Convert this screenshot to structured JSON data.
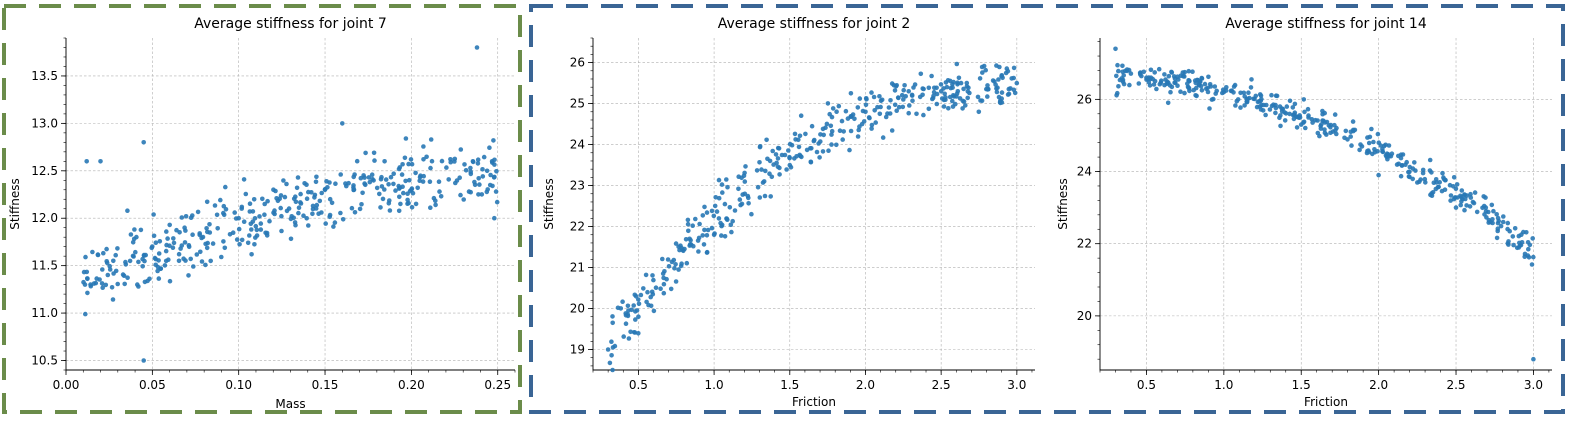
{
  "colors": {
    "points": "#2878b5",
    "group_green": "#6b8c4a",
    "group_blue": "#3a6595"
  },
  "chart_data": [
    {
      "type": "scatter",
      "title": "Average stiffness for joint 7",
      "xlabel": "Mass",
      "ylabel": "Stiffness",
      "xlim": [
        0.0,
        0.26
      ],
      "ylim": [
        10.4,
        13.9
      ],
      "xticks": [
        0.0,
        0.05,
        0.1,
        0.15,
        0.2,
        0.25
      ],
      "xtick_labels": [
        "0.00",
        "0.05",
        "0.10",
        "0.15",
        "0.20",
        "0.25"
      ],
      "yticks": [
        10.5,
        11.0,
        11.5,
        12.0,
        12.5,
        13.0,
        13.5
      ],
      "ytick_labels": [
        "10.5",
        "11.0",
        "11.5",
        "12.0",
        "12.5",
        "13.0",
        "13.5"
      ],
      "trend": {
        "kind": "linear_sat",
        "x0": 0.01,
        "x1": 0.25,
        "y0": 11.35,
        "y1": 12.5,
        "noise": 0.3
      },
      "n_points": 400,
      "x_range": [
        0.01,
        0.25
      ],
      "points_sample": [
        [
          0.011,
          11.3
        ],
        [
          0.012,
          12.6
        ],
        [
          0.02,
          12.6
        ],
        [
          0.045,
          10.5
        ],
        [
          0.045,
          12.8
        ],
        [
          0.1,
          12.0
        ],
        [
          0.15,
          12.3
        ],
        [
          0.16,
          13.0
        ],
        [
          0.2,
          12.3
        ],
        [
          0.238,
          13.8
        ],
        [
          0.248,
          12.0
        ]
      ]
    },
    {
      "type": "scatter",
      "title": "Average stiffness for joint 2",
      "xlabel": "Friction",
      "ylabel": "Stiffness",
      "xlim": [
        0.2,
        3.12
      ],
      "ylim": [
        18.5,
        26.6
      ],
      "xticks": [
        0.5,
        1.0,
        1.5,
        2.0,
        2.5,
        3.0
      ],
      "xtick_labels": [
        "0.5",
        "1.0",
        "1.5",
        "2.0",
        "2.5",
        "3.0"
      ],
      "yticks": [
        19,
        20,
        21,
        22,
        23,
        24,
        25,
        26
      ],
      "ytick_labels": [
        "19",
        "20",
        "21",
        "22",
        "23",
        "24",
        "25",
        "26"
      ],
      "trend": {
        "kind": "concave",
        "x0": 0.3,
        "x1": 3.0,
        "y0": 19.0,
        "y1": 25.4,
        "noise": 0.55
      },
      "n_points": 400,
      "x_range": [
        0.3,
        3.0
      ],
      "points_sample": [
        [
          0.3,
          19.0
        ],
        [
          0.5,
          19.8
        ],
        [
          1.0,
          21.8
        ],
        [
          1.5,
          23.5
        ],
        [
          2.0,
          24.8
        ],
        [
          2.5,
          25.3
        ],
        [
          3.0,
          25.5
        ]
      ]
    },
    {
      "type": "scatter",
      "title": "Average stiffness for joint 14",
      "xlabel": "Friction",
      "ylabel": "Stiffness",
      "xlim": [
        0.2,
        3.12
      ],
      "ylim": [
        18.5,
        27.7
      ],
      "xticks": [
        0.5,
        1.0,
        1.5,
        2.0,
        2.5,
        3.0
      ],
      "xtick_labels": [
        "0.5",
        "1.0",
        "1.5",
        "2.0",
        "2.5",
        "3.0"
      ],
      "yticks": [
        20,
        22,
        24,
        26
      ],
      "ytick_labels": [
        "20",
        "22",
        "24",
        "26"
      ],
      "trend": {
        "kind": "concave_down",
        "x0": 0.3,
        "x1": 3.0,
        "y0": 26.6,
        "y1": 21.8,
        "noise": 0.35
      },
      "n_points": 400,
      "x_range": [
        0.3,
        3.0
      ],
      "points_sample": [
        [
          0.3,
          27.4
        ],
        [
          0.5,
          26.6
        ],
        [
          1.0,
          26.2
        ],
        [
          1.5,
          25.3
        ],
        [
          2.0,
          23.9
        ],
        [
          2.5,
          23.0
        ],
        [
          3.0,
          18.8
        ]
      ]
    }
  ]
}
